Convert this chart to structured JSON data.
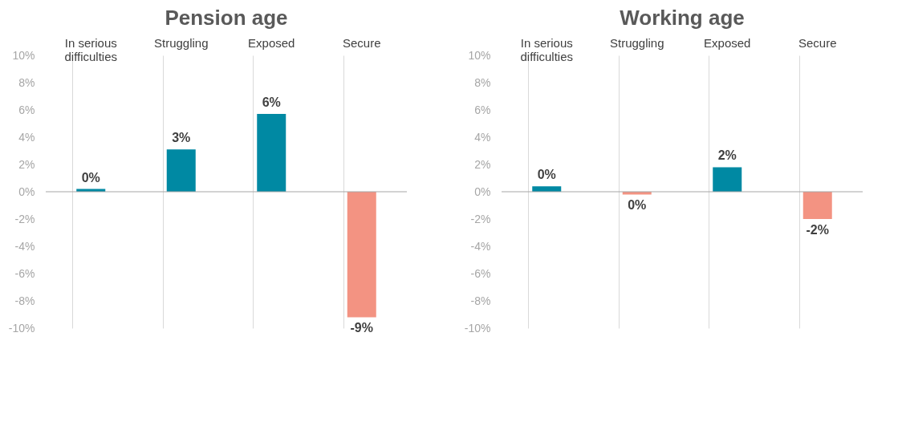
{
  "chart_data": [
    {
      "type": "bar",
      "title": "Pension age",
      "ref_lines": [
        {
          "axis": "y",
          "value": 0,
          "color": "#a6a6a6"
        }
      ],
      "categories": [
        "In serious difficulties",
        "Struggling",
        "Exposed",
        "Secure"
      ],
      "values": [
        0.2,
        3.1,
        5.7,
        -9.2
      ],
      "colors": [
        "#0089a3",
        "#0089a3",
        "#0089a3",
        "#f39382"
      ],
      "value_labels": [
        "0%",
        "3%",
        "6%",
        "-9%"
      ],
      "ylim": [
        -10,
        10
      ],
      "yticks": [
        {
          "value": -10,
          "label": "-10%"
        },
        {
          "value": -8,
          "label": "-8%"
        },
        {
          "value": -6,
          "label": "-6%"
        },
        {
          "value": -4,
          "label": "-4%"
        },
        {
          "value": -2,
          "label": "-2%"
        },
        {
          "value": 0,
          "label": "0%"
        },
        {
          "value": 2,
          "label": "2%"
        },
        {
          "value": 4,
          "label": "4%"
        },
        {
          "value": 6,
          "label": "6%"
        },
        {
          "value": 8,
          "label": "8%"
        },
        {
          "value": 10,
          "label": "10%"
        }
      ],
      "grid": "x"
    },
    {
      "type": "bar",
      "title": "Working age",
      "ref_lines": [
        {
          "axis": "y",
          "value": 0,
          "color": "#a6a6a6"
        }
      ],
      "categories": [
        "In serious difficulties",
        "Struggling",
        "Exposed",
        "Secure"
      ],
      "values": [
        0.4,
        -0.2,
        1.8,
        -2.0
      ],
      "colors": [
        "#0089a3",
        "#f39382",
        "#0089a3",
        "#f39382"
      ],
      "value_labels": [
        "0%",
        "0%",
        "2%",
        "-2%"
      ],
      "ylim": [
        -10,
        10
      ],
      "yticks": [
        {
          "value": -10,
          "label": "-10%"
        },
        {
          "value": -8,
          "label": "-8%"
        },
        {
          "value": -6,
          "label": "-6%"
        },
        {
          "value": -4,
          "label": "-4%"
        },
        {
          "value": -2,
          "label": "-2%"
        },
        {
          "value": 0,
          "label": "0%"
        },
        {
          "value": 2,
          "label": "2%"
        },
        {
          "value": 4,
          "label": "4%"
        },
        {
          "value": 6,
          "label": "6%"
        },
        {
          "value": 8,
          "label": "8%"
        },
        {
          "value": 10,
          "label": "10%"
        }
      ],
      "grid": "x"
    }
  ]
}
